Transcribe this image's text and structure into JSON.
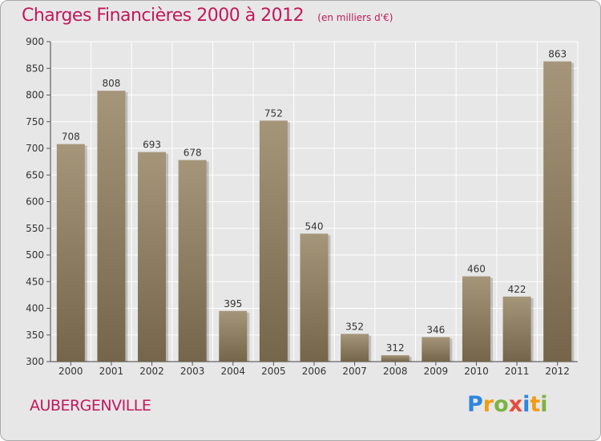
{
  "header": {
    "title": "Charges Financières 2000 à 2012",
    "subtitle": "(en milliers d'€)"
  },
  "footer": {
    "city": "AUBERGENVILLE",
    "logo_text": "Proxiti"
  },
  "colors": {
    "title": "#c2185b",
    "bar_top": "#a5967a",
    "bar_bottom": "#75654a",
    "plot_background": "#e7e7e7",
    "grid": "#ffffff"
  },
  "chart_data": {
    "type": "bar",
    "title": "Charges Financières 2000 à 2012",
    "subtitle": "(en milliers d'€)",
    "xlabel": "",
    "ylabel": "",
    "categories": [
      "2000",
      "2001",
      "2002",
      "2003",
      "2004",
      "2005",
      "2006",
      "2007",
      "2008",
      "2009",
      "2010",
      "2011",
      "2012"
    ],
    "values": [
      708,
      808,
      693,
      678,
      395,
      752,
      540,
      352,
      312,
      346,
      460,
      422,
      863
    ],
    "ylim": [
      300,
      900
    ],
    "yticks": [
      300,
      350,
      400,
      450,
      500,
      550,
      600,
      650,
      700,
      750,
      800,
      850,
      900
    ],
    "grid": true,
    "data_labels": true
  }
}
